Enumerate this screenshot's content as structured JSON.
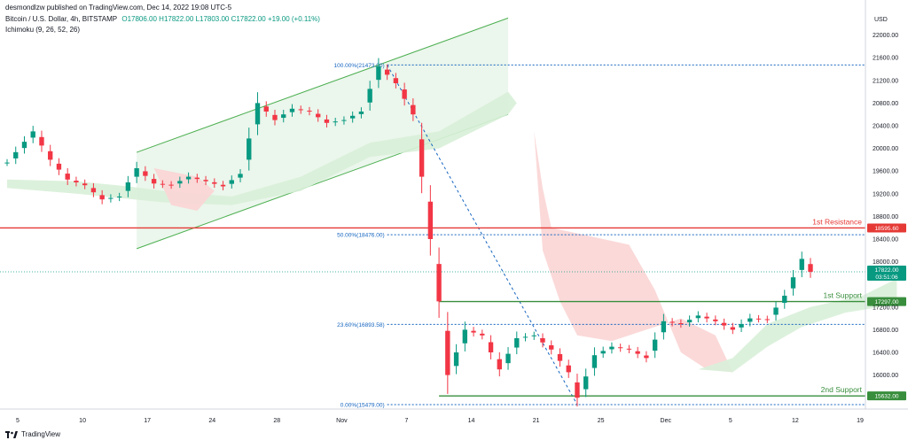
{
  "header": {
    "publisher": "desmondlzw published on TradingView.com, Dec 14, 2022 19:08 UTC-5",
    "symbol": "Bitcoin / U.S. Dollar, 4h, BITSTAMP",
    "ohlc": "O17806.00 H17822.00 L17803.00 C17822.00 +19.00 (+0.11%)",
    "indicator": "Ichimoku (9, 26, 52, 26)"
  },
  "currency": "USD",
  "brand": "TradingView",
  "colors": {
    "up": "#089981",
    "down": "#f23645",
    "resistance": "#e53935",
    "support": "#388e3c",
    "fib": "#1565c0",
    "channel": "#4caf50",
    "channel_fill": "#e8f5e9",
    "cloud_green": "#d8efd8",
    "cloud_red": "#fbd5d5"
  },
  "chart_data": {
    "type": "candlestick",
    "symbol": "BTCUSD",
    "timeframe": "4h",
    "y_axis": {
      "min": 15400,
      "max": 22400,
      "ticks": [
        16000,
        16400,
        16800,
        17200,
        18000,
        18400,
        18800,
        19200,
        19600,
        20000,
        20400,
        20800,
        21200,
        21600,
        22000
      ]
    },
    "x_axis": {
      "ticks": [
        "5",
        "10",
        "17",
        "24",
        "28",
        "Nov",
        "7",
        "14",
        "21",
        "25",
        "Dec",
        "5",
        "12",
        "19"
      ]
    },
    "price_path": [
      [
        0,
        19750
      ],
      [
        3,
        20300
      ],
      [
        5,
        19800
      ],
      [
        7,
        19450
      ],
      [
        9,
        19350
      ],
      [
        11,
        19100
      ],
      [
        13,
        19150
      ],
      [
        15,
        19650
      ],
      [
        17,
        19380
      ],
      [
        19,
        19350
      ],
      [
        21,
        19500
      ],
      [
        23,
        19420
      ],
      [
        25,
        19330
      ],
      [
        27,
        19550
      ],
      [
        29,
        20800
      ],
      [
        31,
        20500
      ],
      [
        33,
        20700
      ],
      [
        35,
        20650
      ],
      [
        37,
        20450
      ],
      [
        39,
        20500
      ],
      [
        41,
        20650
      ],
      [
        43,
        21450
      ],
      [
        45,
        21150
      ],
      [
        47,
        20600
      ],
      [
        49,
        18400
      ],
      [
        50,
        17300
      ],
      [
        51,
        16000
      ],
      [
        53,
        16800
      ],
      [
        55,
        16700
      ],
      [
        57,
        16100
      ],
      [
        59,
        16650
      ],
      [
        61,
        16700
      ],
      [
        63,
        16450
      ],
      [
        65,
        16050
      ],
      [
        66,
        15600
      ],
      [
        68,
        16350
      ],
      [
        70,
        16500
      ],
      [
        72,
        16450
      ],
      [
        74,
        16300
      ],
      [
        76,
        16950
      ],
      [
        78,
        16900
      ],
      [
        80,
        17050
      ],
      [
        82,
        16950
      ],
      [
        84,
        16800
      ],
      [
        86,
        17000
      ],
      [
        88,
        16980
      ],
      [
        90,
        17400
      ],
      [
        92,
        18050
      ],
      [
        93,
        17822
      ]
    ],
    "price_levels": [
      {
        "label": "1st Resistance",
        "value": 18595.6,
        "value_label": "18595.60"
      },
      {
        "label": "1st Support",
        "value": 17297.0,
        "value_label": "17297.00"
      },
      {
        "label": "2nd Support",
        "value": 15632.0,
        "value_label": "15632.00"
      }
    ],
    "fib_levels": [
      {
        "label": "100.00%(21473.00)",
        "value": 21473
      },
      {
        "label": "50.00%(18476.00)",
        "value": 18476
      },
      {
        "label": "23.60%(16893.58)",
        "value": 16893.58
      },
      {
        "label": "0.00%(15479.00)",
        "value": 15479
      }
    ],
    "current_price": {
      "value": 17822.0,
      "label": "17822.00",
      "countdown": "03:51:06"
    },
    "annotations": [
      "ascending channel",
      "Fibonacci retracement",
      "Ichimoku cloud"
    ]
  }
}
